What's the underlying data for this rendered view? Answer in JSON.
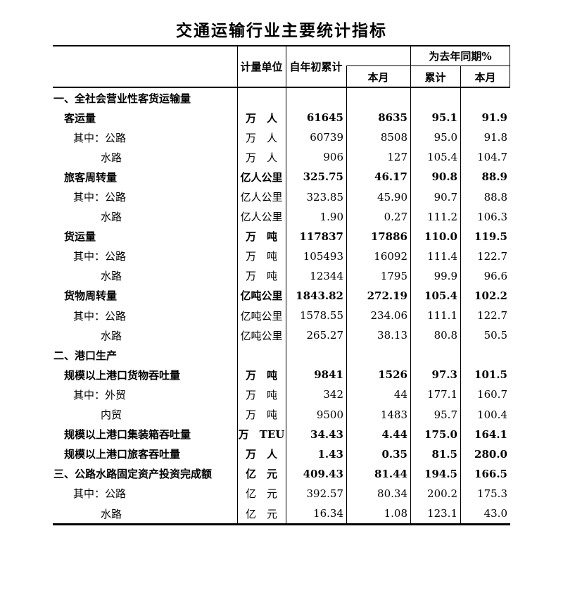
{
  "title": "交通运输行业主要统计指标",
  "table": {
    "header": {
      "unit": "计量单位",
      "ytd": "自年初累计",
      "month": "本月",
      "yoy_group": "为去年同期%",
      "yoy_cumulative": "累计",
      "yoy_month": "本月"
    },
    "rows": [
      {
        "label": "一、全社会营业性客货运输量",
        "unit": "",
        "ytd": "",
        "month": "",
        "yoy_ytd": "",
        "yoy_month": "",
        "indent": 0,
        "bold": true
      },
      {
        "label": "客运量",
        "unit": "万　人",
        "ytd": "61645",
        "month": "8635",
        "yoy_ytd": "95.1",
        "yoy_month": "91.9",
        "indent": 1,
        "bold": true
      },
      {
        "label": "其中：公路",
        "unit": "万　人",
        "ytd": "60739",
        "month": "8508",
        "yoy_ytd": "95.0",
        "yoy_month": "91.8",
        "indent": 2,
        "bold": false
      },
      {
        "label": "水路",
        "unit": "万　人",
        "ytd": "906",
        "month": "127",
        "yoy_ytd": "105.4",
        "yoy_month": "104.7",
        "indent": 3,
        "bold": false
      },
      {
        "label": "旅客周转量",
        "unit": "亿人公里",
        "ytd": "325.75",
        "month": "46.17",
        "yoy_ytd": "90.8",
        "yoy_month": "88.9",
        "indent": 1,
        "bold": true
      },
      {
        "label": "其中：公路",
        "unit": "亿人公里",
        "ytd": "323.85",
        "month": "45.90",
        "yoy_ytd": "90.7",
        "yoy_month": "88.8",
        "indent": 2,
        "bold": false
      },
      {
        "label": "水路",
        "unit": "亿人公里",
        "ytd": "1.90",
        "month": "0.27",
        "yoy_ytd": "111.2",
        "yoy_month": "106.3",
        "indent": 3,
        "bold": false
      },
      {
        "label": "货运量",
        "unit": "万　吨",
        "ytd": "117837",
        "month": "17886",
        "yoy_ytd": "110.0",
        "yoy_month": "119.5",
        "indent": 1,
        "bold": true
      },
      {
        "label": "其中：公路",
        "unit": "万　吨",
        "ytd": "105493",
        "month": "16092",
        "yoy_ytd": "111.4",
        "yoy_month": "122.7",
        "indent": 2,
        "bold": false
      },
      {
        "label": "水路",
        "unit": "万　吨",
        "ytd": "12344",
        "month": "1795",
        "yoy_ytd": "99.9",
        "yoy_month": "96.6",
        "indent": 3,
        "bold": false
      },
      {
        "label": "货物周转量",
        "unit": "亿吨公里",
        "ytd": "1843.82",
        "month": "272.19",
        "yoy_ytd": "105.4",
        "yoy_month": "102.2",
        "indent": 1,
        "bold": true
      },
      {
        "label": "其中：公路",
        "unit": "亿吨公里",
        "ytd": "1578.55",
        "month": "234.06",
        "yoy_ytd": "111.1",
        "yoy_month": "122.7",
        "indent": 2,
        "bold": false
      },
      {
        "label": "水路",
        "unit": "亿吨公里",
        "ytd": "265.27",
        "month": "38.13",
        "yoy_ytd": "80.8",
        "yoy_month": "50.5",
        "indent": 3,
        "bold": false
      },
      {
        "label": "二、港口生产",
        "unit": "",
        "ytd": "",
        "month": "",
        "yoy_ytd": "",
        "yoy_month": "",
        "indent": 0,
        "bold": true
      },
      {
        "label": "规模以上港口货物吞吐量",
        "unit": "万　吨",
        "ytd": "9841",
        "month": "1526",
        "yoy_ytd": "97.3",
        "yoy_month": "101.5",
        "indent": 1,
        "bold": true
      },
      {
        "label": "其中：外贸",
        "unit": "万　吨",
        "ytd": "342",
        "month": "44",
        "yoy_ytd": "177.1",
        "yoy_month": "160.7",
        "indent": 2,
        "bold": false
      },
      {
        "label": "内贸",
        "unit": "万　吨",
        "ytd": "9500",
        "month": "1483",
        "yoy_ytd": "95.7",
        "yoy_month": "100.4",
        "indent": 3,
        "bold": false
      },
      {
        "label": "规模以上港口集装箱吞吐量",
        "unit": "万　TEU",
        "ytd": "34.43",
        "month": "4.44",
        "yoy_ytd": "175.0",
        "yoy_month": "164.1",
        "indent": 1,
        "bold": true
      },
      {
        "label": "规模以上港口旅客吞吐量",
        "unit": "万　人",
        "ytd": "1.43",
        "month": "0.35",
        "yoy_ytd": "81.5",
        "yoy_month": "280.0",
        "indent": 1,
        "bold": true
      },
      {
        "label": "三、公路水路固定资产投资完成额",
        "unit": "亿　元",
        "ytd": "409.43",
        "month": "81.44",
        "yoy_ytd": "194.5",
        "yoy_month": "166.5",
        "indent": 0,
        "bold": true
      },
      {
        "label": "其中：公路",
        "unit": "亿　元",
        "ytd": "392.57",
        "month": "80.34",
        "yoy_ytd": "200.2",
        "yoy_month": "175.3",
        "indent": 2,
        "bold": false
      },
      {
        "label": "水路",
        "unit": "亿　元",
        "ytd": "16.34",
        "month": "1.08",
        "yoy_ytd": "123.1",
        "yoy_month": "43.0",
        "indent": 3,
        "bold": false
      }
    ]
  }
}
